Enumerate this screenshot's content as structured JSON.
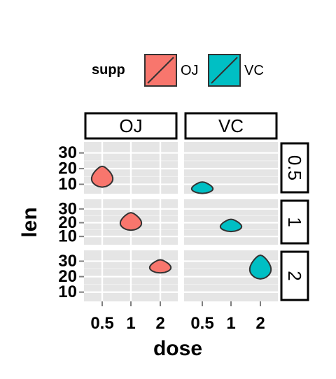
{
  "chart_data": {
    "type": "violin",
    "facet_cols": [
      "OJ",
      "VC"
    ],
    "facet_rows": [
      "0.5",
      "1",
      "2"
    ],
    "xlabel": "dose",
    "ylabel": "len",
    "x_categories": [
      "0.5",
      "1",
      "2"
    ],
    "y_ticks": [
      "10",
      "20",
      "30"
    ],
    "ylim": [
      4,
      37
    ],
    "grid": true,
    "legend": {
      "title": "supp",
      "position": "top",
      "entries": [
        {
          "label": "OJ",
          "color": "#F8766D"
        },
        {
          "label": "VC",
          "color": "#00BFC4"
        }
      ]
    },
    "violins": [
      {
        "panel_row": "0.5",
        "panel_col": "OJ",
        "dose": "0.5",
        "min": 8.2,
        "max": 21.5
      },
      {
        "panel_row": "0.5",
        "panel_col": "VC",
        "dose": "0.5",
        "min": 4.2,
        "max": 11.5
      },
      {
        "panel_row": "1",
        "panel_col": "OJ",
        "dose": "1",
        "min": 14.5,
        "max": 27.3
      },
      {
        "panel_row": "1",
        "panel_col": "VC",
        "dose": "1",
        "min": 13.6,
        "max": 22.5
      },
      {
        "panel_row": "2",
        "panel_col": "OJ",
        "dose": "2",
        "min": 22.4,
        "max": 30.9
      },
      {
        "panel_row": "2",
        "panel_col": "VC",
        "dose": "2",
        "min": 18.5,
        "max": 33.9
      }
    ]
  }
}
